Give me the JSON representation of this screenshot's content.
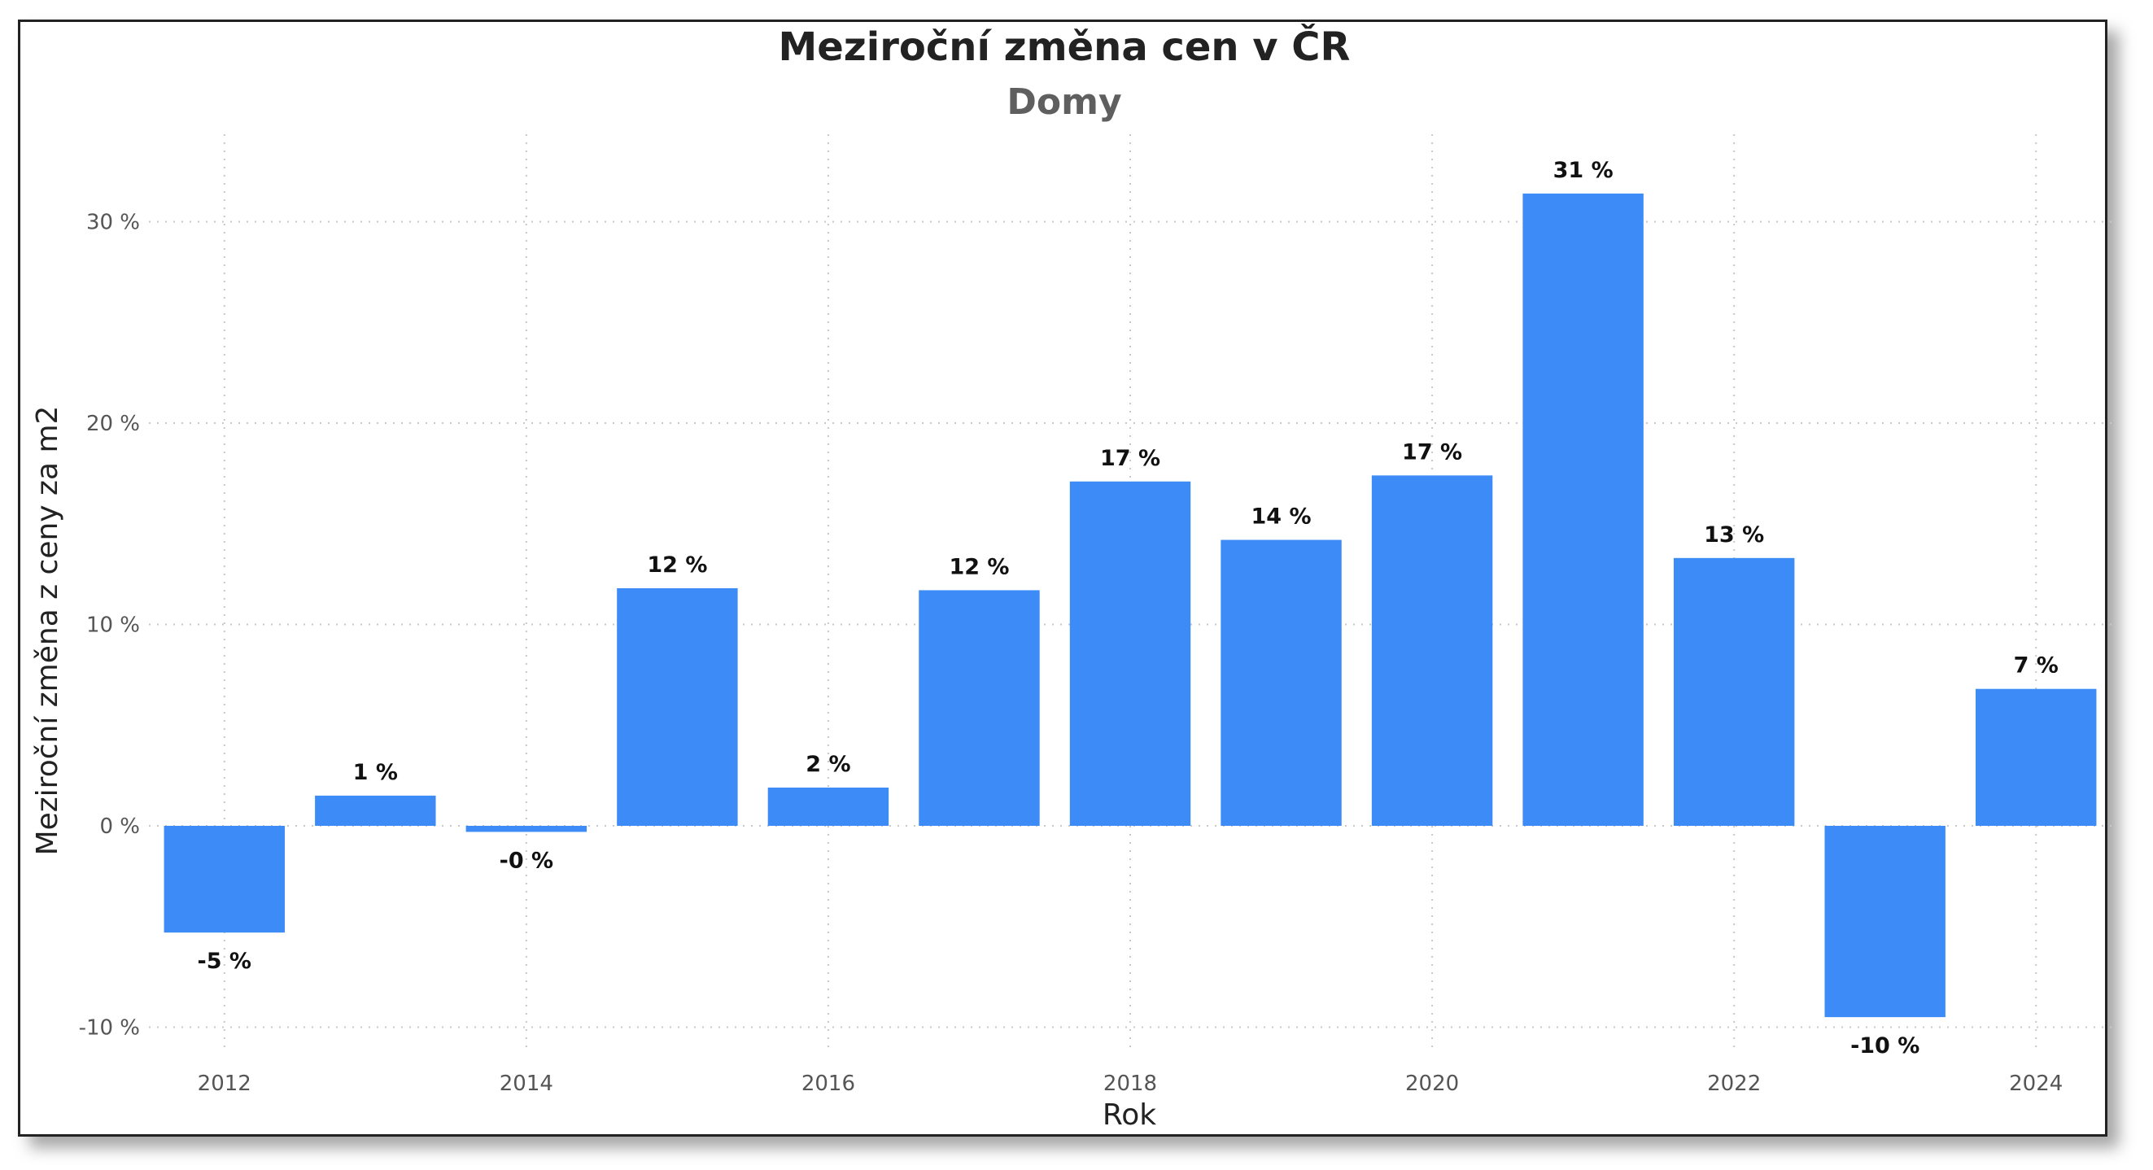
{
  "chart_data": {
    "type": "bar",
    "title": "Meziroční změna cen v ČR",
    "subtitle": "Domy",
    "xlabel": "Rok",
    "ylabel": "Meziroční změna z ceny za m2",
    "categories": [
      2012,
      2013,
      2014,
      2015,
      2016,
      2017,
      2018,
      2019,
      2020,
      2021,
      2022,
      2023,
      2024
    ],
    "values": [
      -5.3,
      1.5,
      -0.3,
      11.8,
      1.9,
      11.7,
      17.1,
      14.2,
      17.4,
      31.4,
      13.3,
      -9.5,
      6.8
    ],
    "data_labels": [
      "-5 %",
      "1 %",
      "-0 %",
      "12 %",
      "2 %",
      "12 %",
      "17 %",
      "14 %",
      "17 %",
      "31 %",
      "13 %",
      "-10 %",
      "7 %"
    ],
    "x_tick_labels": [
      "2012",
      "2014",
      "2016",
      "2018",
      "2020",
      "2022",
      "2024"
    ],
    "y_tick_labels": [
      "-10 %",
      "0 %",
      "10 %",
      "20 %",
      "30 %"
    ],
    "y_ticks": [
      -10,
      0,
      10,
      20,
      30
    ],
    "ylim": [
      -12,
      37
    ],
    "bar_color": "#3d8bf7",
    "grid": true
  }
}
